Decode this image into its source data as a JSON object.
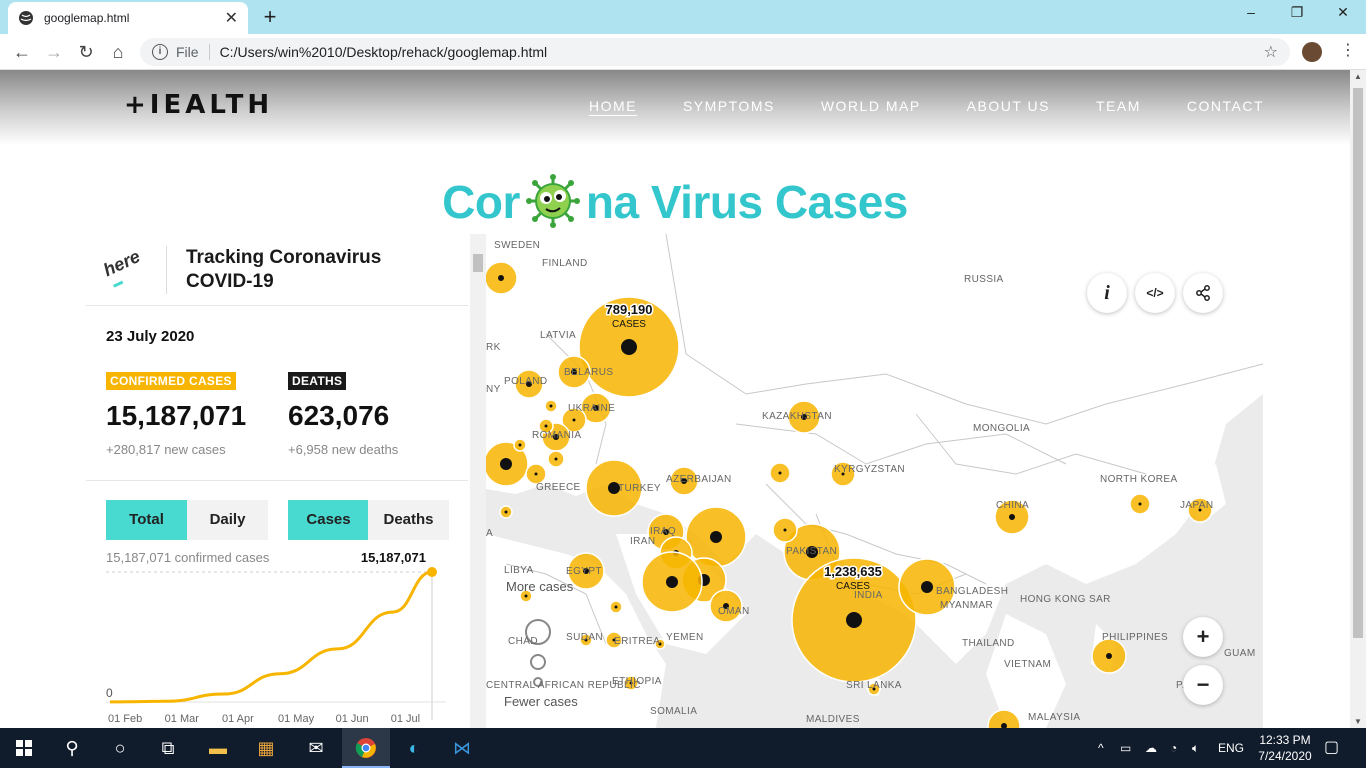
{
  "browser": {
    "tab_title": "googlemap.html",
    "new_tab": "+",
    "scheme_label": "File",
    "url": "C:/Users/win%2010/Desktop/rehack/googlemap.html",
    "window_controls": [
      "–",
      "❐",
      "✕"
    ]
  },
  "site": {
    "logo": "+IEALTH",
    "nav": [
      "HOME",
      "SYMPTOMS",
      "WORLD MAP",
      "ABOUT US",
      "TEAM",
      "CONTACT"
    ],
    "active_nav": "HOME",
    "hero_title_before": "Cor",
    "hero_title_after": "na Virus Cases"
  },
  "panel": {
    "brand": "here",
    "title": "Tracking Coronavirus COVID-19",
    "date": "23 July 2020",
    "confirmed_label": "CONFIRMED CASES",
    "confirmed_value": "15,187,071",
    "confirmed_new": "+280,817 new cases",
    "deaths_label": "DEATHS",
    "deaths_value": "623,076",
    "deaths_new": "+6,958 new deaths",
    "toggle_range": [
      "Total",
      "Daily"
    ],
    "toggle_metric": [
      "Cases",
      "Deaths"
    ],
    "active_range": "Total",
    "active_metric": "Cases"
  },
  "chart_data": {
    "type": "area",
    "title": "15,187,071 confirmed cases",
    "end_label": "15,187,071",
    "x": [
      "01 Feb",
      "01 Mar",
      "01 Apr",
      "01 May",
      "01 Jun",
      "01 Jul",
      "23 Jul"
    ],
    "values": [
      12000,
      85000,
      930000,
      3300000,
      6200000,
      10500000,
      15187071
    ],
    "y_min_label": "0",
    "ylim": [
      0,
      15187071
    ],
    "x_tick_labels": [
      "01 Feb",
      "01 Mar",
      "01 Apr",
      "01 May",
      "01 Jun",
      "01 Jul"
    ],
    "line_color": "#f7b500"
  },
  "map": {
    "labels": [
      "SWEDEN",
      "FINLAND",
      "RUSSIA",
      "LATVIA",
      "RK",
      "NY",
      "POLAND",
      "BELARUS",
      "UKRAINE",
      "ROMANIA",
      "GREECE",
      "KAZAKHSTAN",
      "MONGOLIA",
      "KYRGYZSTAN",
      "NORTH KOREA",
      "JAPAN",
      "CHINA",
      "TURKEY",
      "AZERBAIJAN",
      "IRAQ",
      "IRAN",
      "PAKISTAN",
      "INDIA",
      "BANGLADESH",
      "MYANMAR",
      "HONG KONG SAR",
      "LIBYA",
      "EGYPT",
      "OMAN",
      "SUDAN",
      "ERITREA",
      "YEMEN",
      "CHAD",
      "ETHIOPIA",
      "SOMALIA",
      "CENTRAL AFRICAN REPUBLIC",
      "THAILAND",
      "VIETNAM",
      "PHILIPPINES",
      "GUAM",
      "SRI LANKA",
      "MALDIVES",
      "MALAYSIA",
      "PALAU",
      "A"
    ],
    "callouts": [
      {
        "value": "789,190",
        "unit": "CASES"
      },
      {
        "value": "1,238,635",
        "unit": "CASES"
      }
    ],
    "legend_more": "More cases",
    "legend_fewer": "Fewer cases",
    "buttons": {
      "info": "i",
      "embed": "</>",
      "share": "share",
      "zoom_in": "+",
      "zoom_out": "−"
    },
    "bubble_color": "#f7b500"
  },
  "taskbar": {
    "language": "ENG",
    "time": "12:33 PM",
    "date": "7/24/2020"
  }
}
